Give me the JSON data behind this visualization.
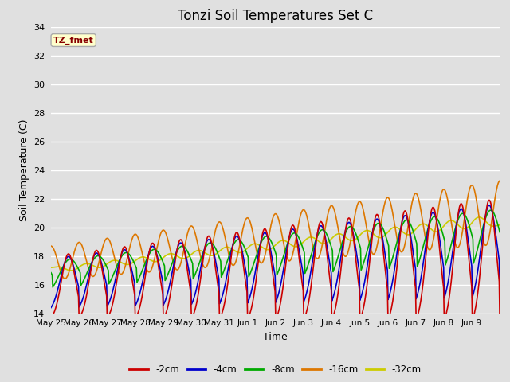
{
  "title": "Tonzi Soil Temperatures Set C",
  "xlabel": "Time",
  "ylabel": "Soil Temperature (C)",
  "ylim": [
    14,
    34
  ],
  "yticks": [
    14,
    16,
    18,
    20,
    22,
    24,
    26,
    28,
    30,
    32,
    34
  ],
  "x_tick_labels": [
    "May 25",
    "May 26",
    "May 27",
    "May 28",
    "May 29",
    "May 30",
    "May 31",
    "Jun 1",
    "Jun 2",
    "Jun 3",
    "Jun 4",
    "Jun 5",
    "Jun 6",
    "Jun 7",
    "Jun 8",
    "Jun 9"
  ],
  "legend_labels": [
    "-2cm",
    "-4cm",
    "-8cm",
    "-16cm",
    "-32cm"
  ],
  "line_colors": [
    "#cc0000",
    "#0000cc",
    "#00aa00",
    "#dd7700",
    "#cccc00"
  ],
  "line_widths": [
    1.2,
    1.2,
    1.2,
    1.2,
    1.2
  ],
  "background_color": "#e0e0e0",
  "plot_bg_color": "#e0e0e0",
  "annotation_text": "TZ_fmet",
  "annotation_bg": "#ffffcc",
  "annotation_border": "#aaaaaa",
  "grid_color": "#ffffff",
  "title_fontsize": 12
}
